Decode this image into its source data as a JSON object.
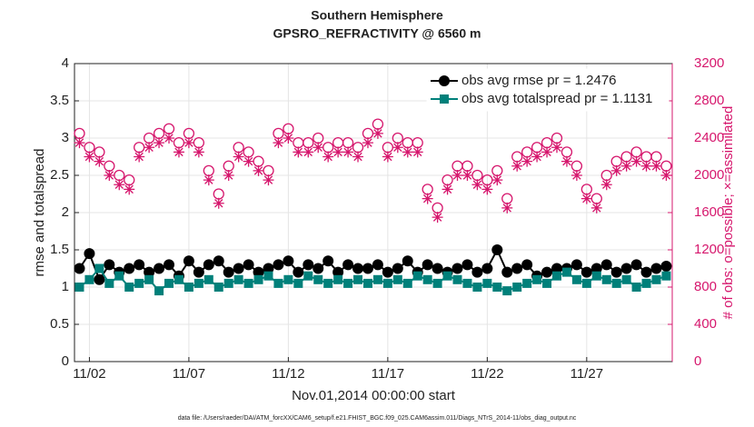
{
  "chart_data": {
    "type": "line",
    "title": "Southern Hemisphere",
    "subtitle": "GPSRO_REFRACTIVITY @ 6560 m",
    "x_label": "Nov.01,2014 00:00:00 start",
    "y_label": "rmse and totalspread",
    "y2_label": "# of obs: o=possible; ×=assimilated",
    "footnote": "data file: /Users/raeder/DAI/ATM_forcXX/CAM6_setup/f.e21.FHIST_BGC.f09_025.CAM6assim.011/Diags_NTrS_2014-11/obs_diag_output.nc",
    "x": [
      0.5,
      1,
      1.5,
      2,
      2.5,
      3,
      3.5,
      4,
      4.5,
      5,
      5.5,
      6,
      6.5,
      7,
      7.5,
      8,
      8.5,
      9,
      9.5,
      10,
      10.5,
      11,
      11.5,
      12,
      12.5,
      13,
      13.5,
      14,
      14.5,
      15,
      15.5,
      16,
      16.5,
      17,
      17.5,
      18,
      18.5,
      19,
      19.5,
      20,
      20.5,
      21,
      21.5,
      22,
      22.5,
      23,
      23.5,
      24,
      24.5,
      25,
      25.5,
      26,
      26.5,
      27,
      27.5,
      28,
      28.5,
      29,
      29.5,
      30
    ],
    "xlim": [
      0.25,
      30.3
    ],
    "xticks": [
      {
        "value": 1,
        "label": "11/02"
      },
      {
        "value": 6,
        "label": "11/07"
      },
      {
        "value": 11,
        "label": "11/12"
      },
      {
        "value": 16,
        "label": "11/17"
      },
      {
        "value": 21,
        "label": "11/22"
      },
      {
        "value": 26,
        "label": "11/27"
      }
    ],
    "ylim": [
      0,
      4
    ],
    "yticks": [
      0,
      0.5,
      1,
      1.5,
      2,
      2.5,
      3,
      3.5,
      4
    ],
    "y2lim": [
      0,
      3200
    ],
    "y2ticks": [
      0,
      400,
      800,
      1200,
      1600,
      2000,
      2400,
      2800,
      3200
    ],
    "grid": true,
    "legend": "upper right",
    "series": [
      {
        "name": "obs avg rmse pr = 1.2476",
        "color": "#000000",
        "marker": "circle",
        "values": [
          1.25,
          1.45,
          1.1,
          1.3,
          1.2,
          1.25,
          1.3,
          1.2,
          1.25,
          1.3,
          1.15,
          1.35,
          1.2,
          1.3,
          1.35,
          1.2,
          1.25,
          1.3,
          1.2,
          1.25,
          1.3,
          1.35,
          1.2,
          1.3,
          1.25,
          1.35,
          1.2,
          1.3,
          1.25,
          1.25,
          1.3,
          1.2,
          1.25,
          1.35,
          1.2,
          1.3,
          1.25,
          1.2,
          1.25,
          1.3,
          1.2,
          1.25,
          1.5,
          1.2,
          1.25,
          1.3,
          1.15,
          1.2,
          1.25,
          1.25,
          1.3,
          1.2,
          1.25,
          1.3,
          1.2,
          1.25,
          1.3,
          1.2,
          1.25,
          1.28
        ]
      },
      {
        "name": "obs avg totalspread pr = 1.1131",
        "color": "#00807a",
        "marker": "square",
        "values": [
          1.0,
          1.1,
          1.25,
          1.05,
          1.15,
          1.0,
          1.05,
          1.1,
          0.95,
          1.05,
          1.1,
          1.0,
          1.05,
          1.1,
          1.0,
          1.05,
          1.1,
          1.05,
          1.1,
          1.15,
          1.05,
          1.1,
          1.05,
          1.15,
          1.1,
          1.05,
          1.1,
          1.05,
          1.1,
          1.05,
          1.1,
          1.05,
          1.1,
          1.05,
          1.15,
          1.1,
          1.05,
          1.15,
          1.1,
          1.05,
          1.0,
          1.05,
          1.0,
          0.95,
          1.0,
          1.05,
          1.1,
          1.05,
          1.15,
          1.2,
          1.1,
          1.05,
          1.15,
          1.1,
          1.05,
          1.1,
          1.0,
          1.05,
          1.1,
          1.15
        ]
      },
      {
        "color": "#d6176d",
        "marker": "open-circle",
        "axis": "y2",
        "values": [
          2450,
          2300,
          2250,
          2100,
          2000,
          1950,
          2300,
          2400,
          2450,
          2500,
          2350,
          2450,
          2350,
          2050,
          1800,
          2100,
          2300,
          2250,
          2150,
          2050,
          2450,
          2500,
          2350,
          2350,
          2400,
          2300,
          2350,
          2350,
          2300,
          2450,
          2550,
          2300,
          2400,
          2350,
          2350,
          1850,
          1650,
          1950,
          2100,
          2100,
          2000,
          1950,
          2050,
          1750,
          2200,
          2250,
          2300,
          2350,
          2400,
          2250,
          2100,
          1850,
          1750,
          2000,
          2150,
          2200,
          2250,
          2200,
          2200,
          2100
        ]
      },
      {
        "color": "#d6176d",
        "marker": "asterisk",
        "axis": "y2",
        "values": [
          2350,
          2200,
          2150,
          2000,
          1900,
          1850,
          2200,
          2300,
          2350,
          2400,
          2250,
          2350,
          2250,
          1950,
          1700,
          2000,
          2200,
          2150,
          2050,
          1950,
          2350,
          2400,
          2250,
          2250,
          2300,
          2200,
          2250,
          2250,
          2200,
          2350,
          2450,
          2200,
          2300,
          2250,
          2250,
          1750,
          1550,
          1850,
          2000,
          2000,
          1900,
          1850,
          1950,
          1650,
          2100,
          2150,
          2200,
          2250,
          2300,
          2150,
          2000,
          1750,
          1650,
          1900,
          2050,
          2100,
          2150,
          2100,
          2100,
          2000
        ]
      }
    ]
  }
}
